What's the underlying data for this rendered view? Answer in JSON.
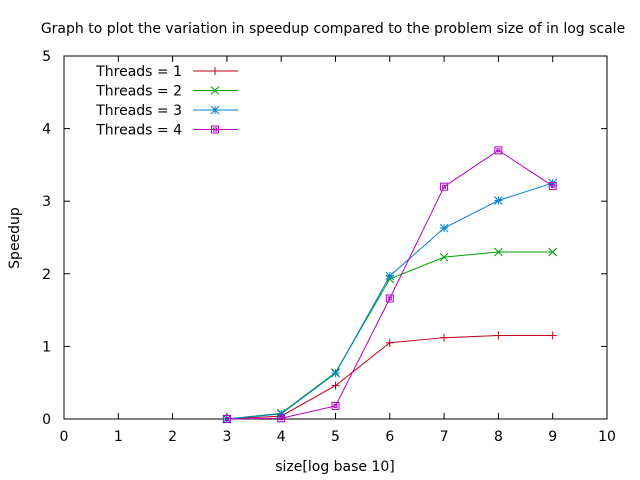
{
  "chart_data": {
    "type": "line",
    "title": "Graph to plot the variation in speedup compared to the problem size of in log scale",
    "xlabel": "size[log base 10]",
    "ylabel": "Speedup",
    "xlim": [
      0,
      10
    ],
    "ylim": [
      0,
      5
    ],
    "xticks": [
      "0",
      "1",
      "2",
      "3",
      "4",
      "5",
      "6",
      "7",
      "8",
      "9",
      "10"
    ],
    "yticks": [
      "0",
      "1",
      "2",
      "3",
      "4",
      "5"
    ],
    "grid": false,
    "legend_position": "top-left",
    "series": [
      {
        "name": "Threads = 1",
        "color": "#c0001a",
        "marker": "plus",
        "x": [
          3,
          4,
          5,
          6,
          7,
          8,
          9
        ],
        "y": [
          0.0,
          0.04,
          0.46,
          1.05,
          1.12,
          1.15,
          1.15
        ]
      },
      {
        "name": "Threads = 2",
        "color": "#00a000",
        "marker": "cross",
        "x": [
          3,
          4,
          5,
          6,
          7,
          8,
          9
        ],
        "y": [
          0.0,
          0.08,
          0.64,
          1.93,
          2.23,
          2.3,
          2.3
        ]
      },
      {
        "name": "Threads = 3",
        "color": "#0080d0",
        "marker": "asterisk",
        "x": [
          3,
          4,
          5,
          6,
          7,
          8,
          9
        ],
        "y": [
          0.0,
          0.07,
          0.63,
          1.97,
          2.63,
          3.01,
          3.25
        ]
      },
      {
        "name": "Threads = 4",
        "color": "#b000c0",
        "marker": "square",
        "x": [
          3,
          4,
          5,
          6,
          7,
          8,
          9
        ],
        "y": [
          0.0,
          0.01,
          0.18,
          1.66,
          3.2,
          3.7,
          3.21
        ]
      }
    ]
  }
}
